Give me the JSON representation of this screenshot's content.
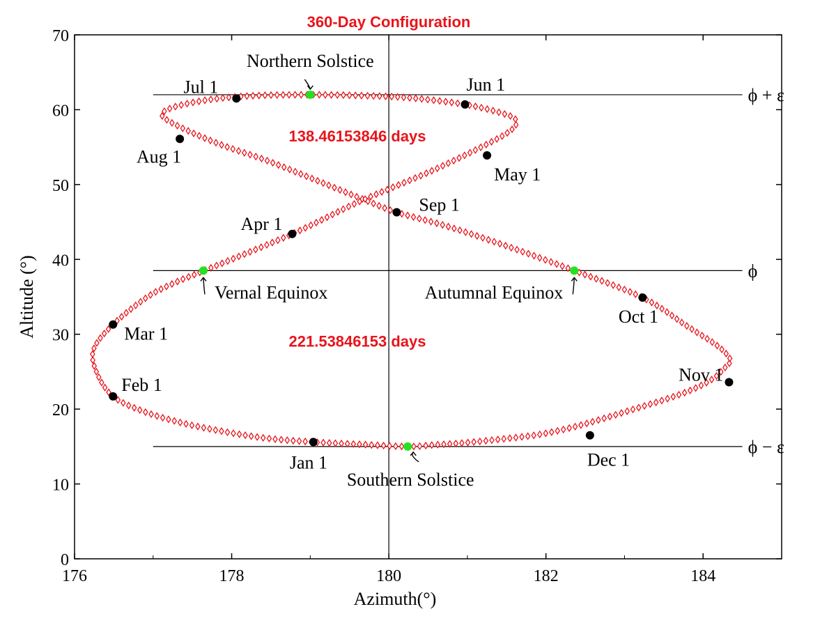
{
  "chart_data": {
    "type": "scatter",
    "title": "360-Day Configuration",
    "xlabel": "Azimuth(°)",
    "ylabel": "Altitude (°)",
    "xlim": [
      176,
      185
    ],
    "ylim": [
      0,
      70
    ],
    "x_ticks": [
      "176",
      "178",
      "180",
      "182",
      "184"
    ],
    "y_ticks": [
      "0",
      "10",
      "20",
      "30",
      "40",
      "50",
      "60",
      "70"
    ],
    "grid": false,
    "colors": {
      "curve": "#e8141b",
      "dates": "#000000",
      "events": "#22e41e",
      "title": "#e8141b",
      "annotations": "#e8141b"
    },
    "reference_lines": [
      {
        "label": "ϕ + ε",
        "y": 62.0
      },
      {
        "label": "ϕ",
        "y": 38.5
      },
      {
        "label": "ϕ − ε",
        "y": 15.0
      }
    ],
    "vertical_line_x": 180.0,
    "annotations": [
      {
        "text": "138.46153846 days",
        "x": 179.6,
        "y": 56.5
      },
      {
        "text": "221.53846153 days",
        "x": 179.6,
        "y": 29.1
      }
    ],
    "monthly_points": [
      {
        "label": "Jan 1",
        "x": 179.04,
        "y": 15.6
      },
      {
        "label": "Feb 1",
        "x": 176.49,
        "y": 21.7
      },
      {
        "label": "Mar 1",
        "x": 176.49,
        "y": 31.3
      },
      {
        "label": "Apr 1",
        "x": 178.77,
        "y": 43.4
      },
      {
        "label": "May 1",
        "x": 181.25,
        "y": 53.9
      },
      {
        "label": "Jun 1",
        "x": 180.97,
        "y": 60.7
      },
      {
        "label": "Jul 1",
        "x": 178.06,
        "y": 61.5
      },
      {
        "label": "Aug 1",
        "x": 177.34,
        "y": 56.1
      },
      {
        "label": "Sep 1",
        "x": 180.1,
        "y": 46.3
      },
      {
        "label": "Oct 1",
        "x": 183.23,
        "y": 34.9
      },
      {
        "label": "Nov 1",
        "x": 184.33,
        "y": 23.6
      },
      {
        "label": "Dec 1",
        "x": 182.56,
        "y": 16.5
      }
    ],
    "event_points": [
      {
        "label": "Northern Solstice",
        "x": 179.0,
        "y": 62.0
      },
      {
        "label": "Vernal Equinox",
        "x": 177.64,
        "y": 38.5
      },
      {
        "label": "Autumnal Equinox",
        "x": 182.36,
        "y": 38.5
      },
      {
        "label": "Southern Solstice",
        "x": 180.24,
        "y": 15.0
      }
    ],
    "series": [
      {
        "marker": "diamond",
        "x": [
          180.24,
          180.55,
          180.97,
          181.44,
          181.91,
          182.35,
          182.75,
          183.15,
          183.52,
          183.86,
          184.13,
          184.31,
          184.35,
          184.19,
          183.81,
          183.23,
          182.36,
          181.55,
          180.75,
          180.1,
          179.68,
          179.07,
          178.45,
          177.87,
          177.38,
          177.12,
          177.18,
          177.43,
          177.83,
          178.35,
          179.0,
          179.6,
          180.25,
          180.97,
          181.45,
          181.62,
          181.56,
          181.25,
          180.54,
          179.62,
          178.77,
          177.65,
          177.3,
          176.93,
          176.49,
          176.24,
          176.29,
          176.49,
          176.85,
          177.35,
          177.9,
          178.45,
          179.04,
          179.62,
          180.24
        ],
        "y": [
          15.0,
          15.2,
          15.5,
          16.0,
          16.6,
          17.6,
          18.8,
          20.1,
          21.3,
          22.6,
          24.1,
          25.9,
          26.6,
          28.4,
          31.0,
          34.9,
          38.5,
          41.6,
          44.4,
          46.3,
          48.0,
          50.6,
          53.2,
          55.3,
          57.5,
          59.1,
          60.0,
          60.8,
          61.5,
          61.9,
          62.0,
          61.9,
          61.6,
          60.7,
          59.5,
          58.6,
          57.3,
          55.4,
          51.8,
          47.7,
          43.4,
          38.5,
          37.0,
          35.0,
          31.3,
          27.9,
          24.7,
          21.7,
          19.8,
          18.2,
          17.0,
          16.1,
          15.6,
          15.3,
          15.0
        ]
      }
    ]
  }
}
